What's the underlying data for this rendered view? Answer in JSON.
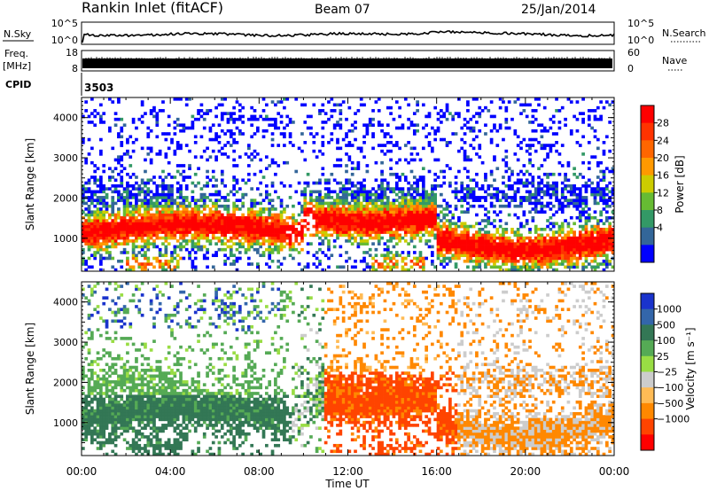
{
  "header": {
    "station": "Rankin Inlet (fitACF)",
    "beam": "Beam 07",
    "date": "25/Jan/2014"
  },
  "noise_panel": {
    "left_label": "N.Sky",
    "left_ticks": [
      "10^5",
      "10^0"
    ],
    "right_label": "N.Search",
    "right_ticks": [
      "10^5",
      "10^0"
    ]
  },
  "freq_panel": {
    "left_label_1": "Freq.",
    "left_label_2": "[MHz]",
    "left_ticks": [
      "18",
      "8"
    ],
    "right_label": "Nave",
    "right_ticks": [
      "60",
      "0"
    ]
  },
  "cpid": {
    "label": "CPID",
    "value": "3503"
  },
  "chart_data": [
    {
      "type": "heatmap",
      "title": "",
      "xlabel": "",
      "ylabel": "Slant Range [km]",
      "x_ticks": [
        "00:00",
        "04:00",
        "08:00",
        "12:00",
        "16:00",
        "20:00",
        "00:00"
      ],
      "y_ticks": [
        1000,
        2000,
        3000,
        4000
      ],
      "xlim_hours": [
        0,
        24
      ],
      "ylim": [
        180,
        4500
      ],
      "colorbar_label": "Power [dB]",
      "colorbar_ticks": [
        "28",
        "24",
        "20",
        "16",
        "12",
        "8",
        "4"
      ],
      "colorbar_colors": [
        "#ff0000",
        "#ff3300",
        "#ff6600",
        "#ff9900",
        "#cccc00",
        "#66bb33",
        "#339966",
        "#336699",
        "#0000ff"
      ]
    },
    {
      "type": "heatmap",
      "title": "",
      "xlabel": "Time UT",
      "ylabel": "Slant Range [km]",
      "x_ticks": [
        "00:00",
        "04:00",
        "08:00",
        "12:00",
        "16:00",
        "20:00",
        "00:00"
      ],
      "y_ticks": [
        1000,
        2000,
        3000,
        4000
      ],
      "xlim_hours": [
        0,
        24
      ],
      "ylim": [
        180,
        4500
      ],
      "colorbar_label": "Velocity [m s⁻¹]",
      "colorbar_ticks": [
        "1000",
        "500",
        "100",
        "25",
        "−25",
        "−100",
        "−500",
        "−1000"
      ],
      "colorbar_colors": [
        "#1a33cc",
        "#3366aa",
        "#337755",
        "#55aa55",
        "#99dd44",
        "#cccccc",
        "#ffbb55",
        "#ff8800",
        "#ff4400",
        "#ff0000"
      ]
    }
  ]
}
